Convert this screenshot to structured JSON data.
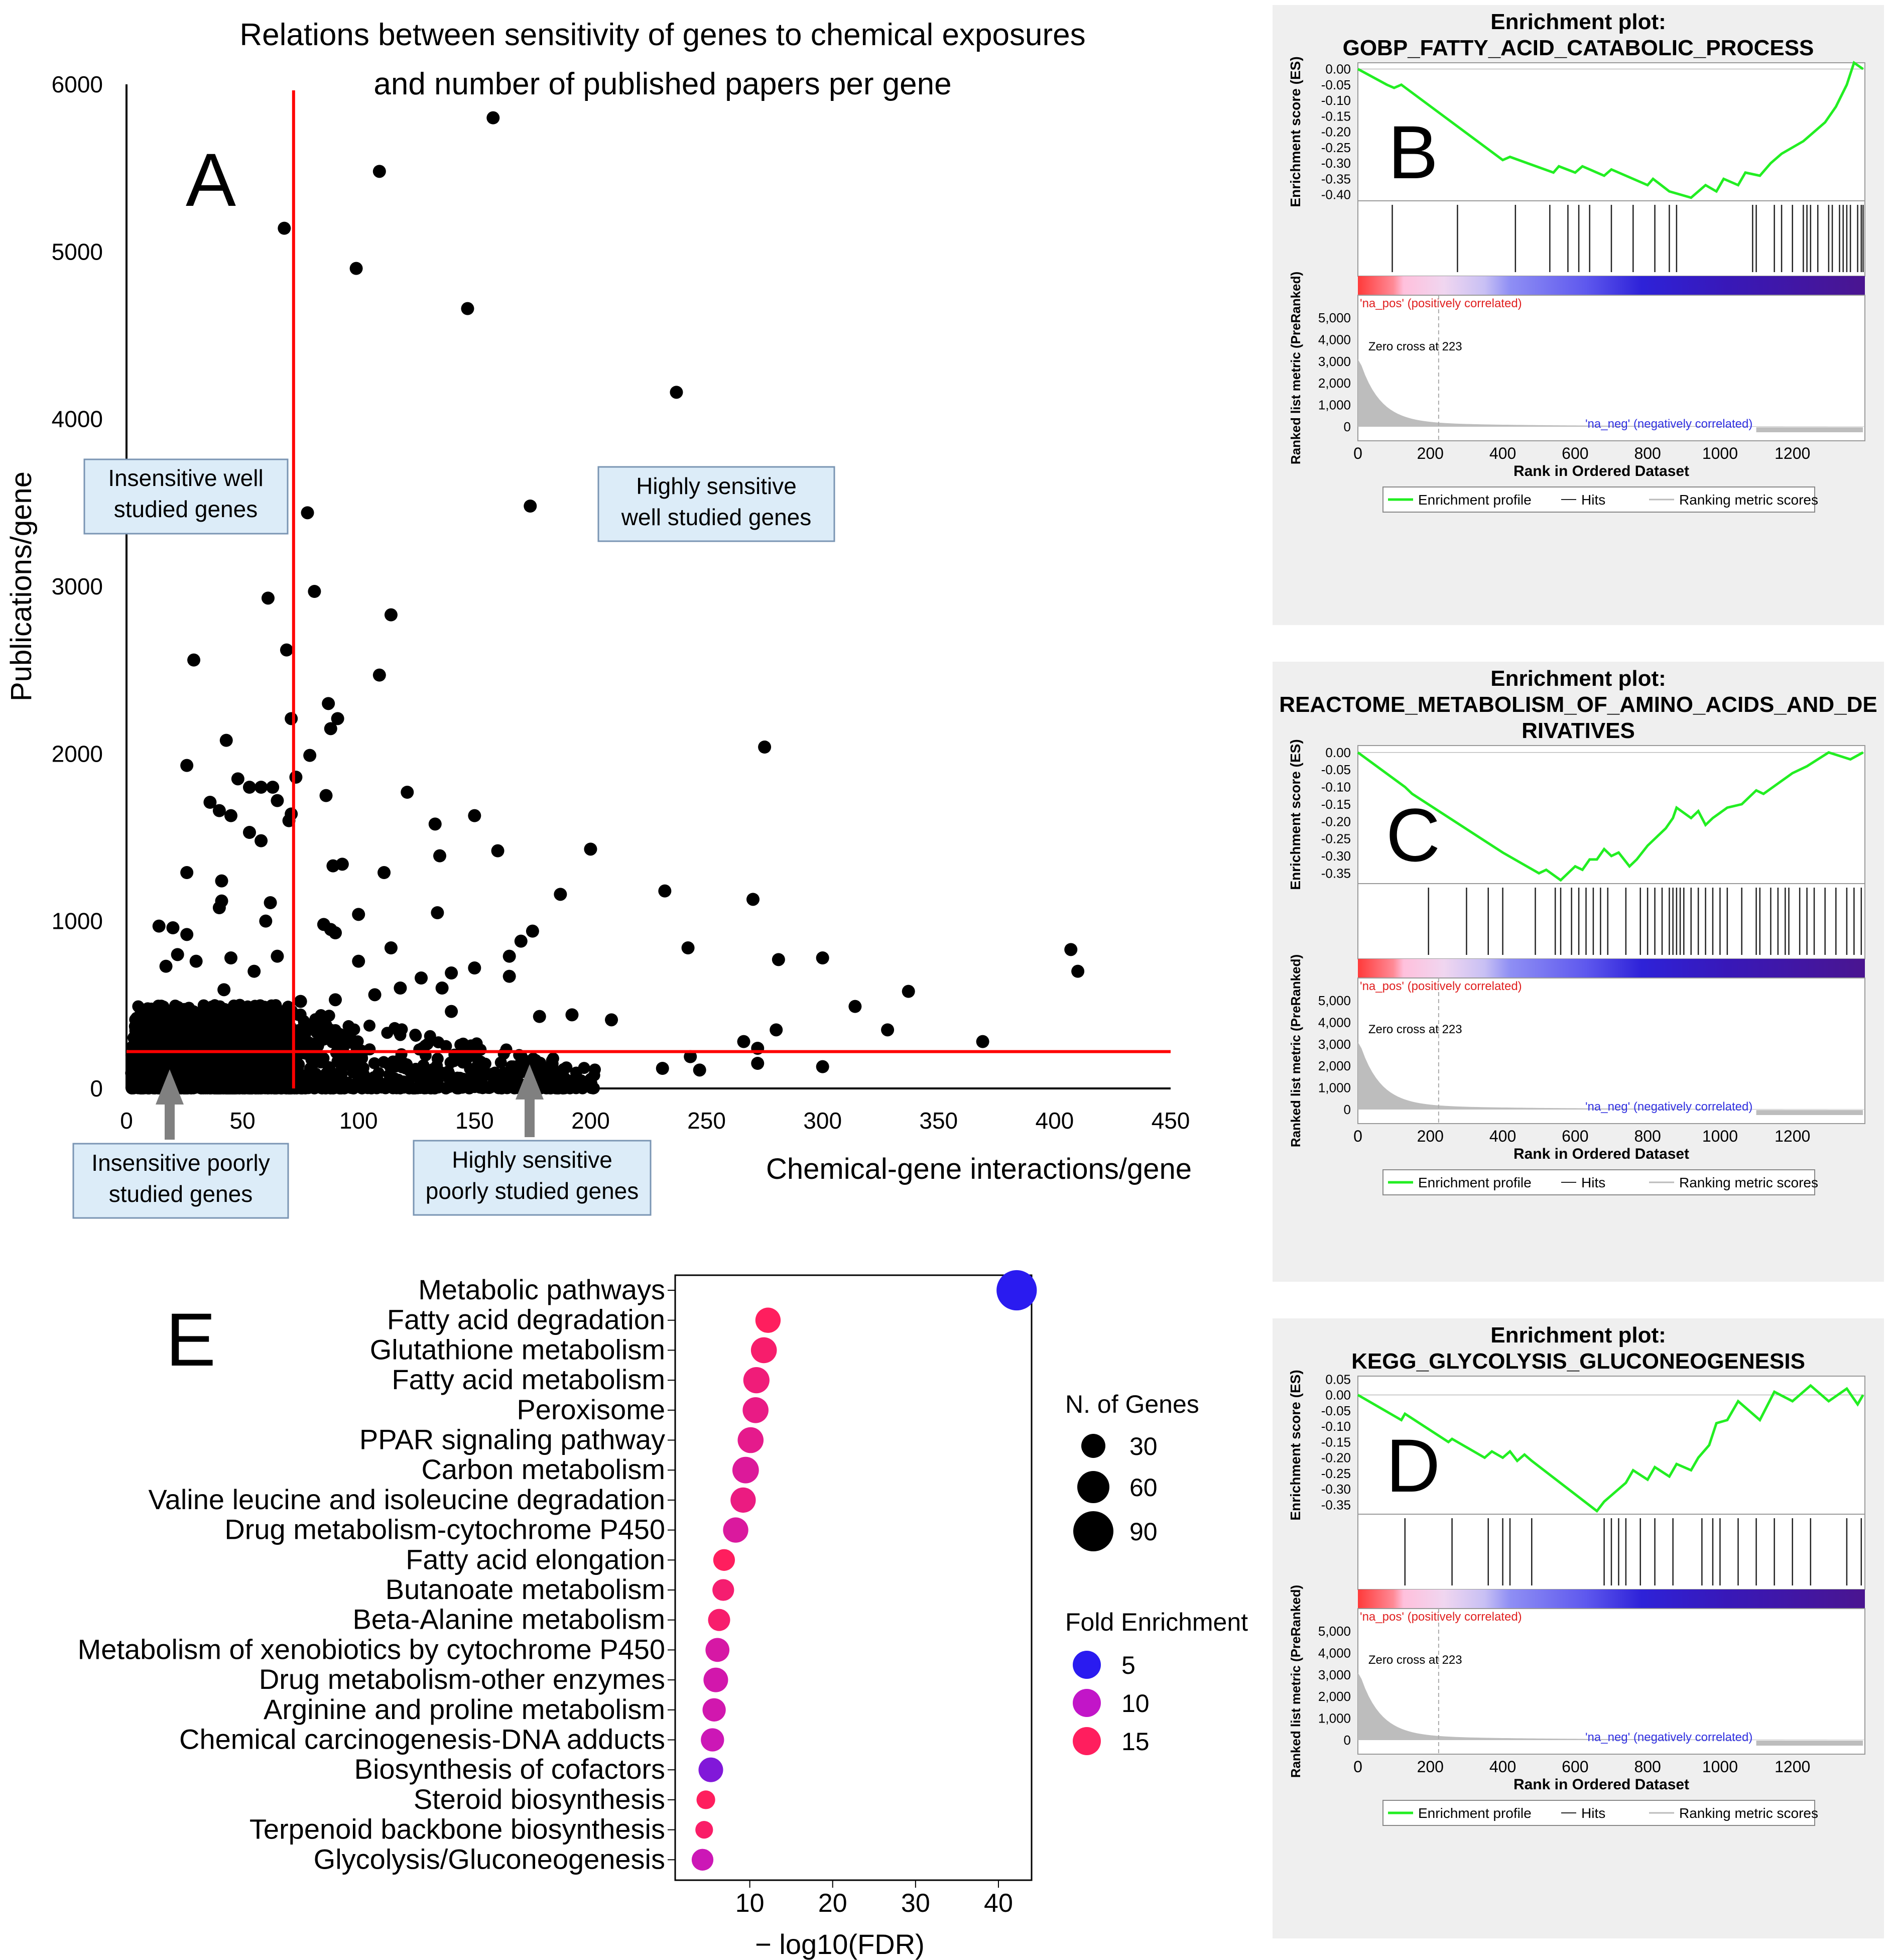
{
  "panel_letters": {
    "A": "A",
    "B": "B",
    "C": "C",
    "D": "D",
    "E": "E"
  },
  "panelA_annotations": {
    "insensitive_well": [
      "Insensitive well",
      "studied genes"
    ],
    "sensitive_well": [
      "Highly sensitive",
      "well studied genes"
    ],
    "insensitive_poor": [
      "Insensitive poorly",
      "studied genes"
    ],
    "sensitive_poor": [
      "Highly sensitive",
      "poorly studied genes"
    ]
  },
  "chart_data": [
    {
      "id": "A",
      "type": "scatter",
      "title": [
        "Relations between sensitivity of genes to chemical exposures",
        "and number of published papers per gene"
      ],
      "xlabel": "Chemical-gene interactions/gene",
      "ylabel": "Publications/gene",
      "xlim": [
        0,
        450
      ],
      "ylim": [
        0,
        6000
      ],
      "xticks": [
        0,
        50,
        100,
        150,
        200,
        250,
        300,
        350,
        400,
        450
      ],
      "yticks": [
        0,
        1000,
        2000,
        3000,
        4000,
        5000,
        6000
      ],
      "threshold_lines": {
        "x": 72,
        "y": 220
      },
      "points": [
        [
          158,
          5800
        ],
        [
          109,
          5480
        ],
        [
          68,
          5140
        ],
        [
          99,
          4900
        ],
        [
          147,
          4660
        ],
        [
          237,
          4160
        ],
        [
          78,
          3440
        ],
        [
          174,
          3480
        ],
        [
          81,
          2970
        ],
        [
          61,
          2930
        ],
        [
          69,
          2620
        ],
        [
          114,
          2830
        ],
        [
          29,
          2560
        ],
        [
          109,
          2470
        ],
        [
          87,
          2300
        ],
        [
          91,
          2210
        ],
        [
          88,
          2150
        ],
        [
          71,
          2210
        ],
        [
          275,
          2040
        ],
        [
          79,
          1990
        ],
        [
          43,
          2080
        ],
        [
          26,
          1930
        ],
        [
          73,
          1860
        ],
        [
          48,
          1850
        ],
        [
          58,
          1800
        ],
        [
          53,
          1800
        ],
        [
          63,
          1800
        ],
        [
          65,
          1720
        ],
        [
          36,
          1710
        ],
        [
          121,
          1770
        ],
        [
          86,
          1750
        ],
        [
          40,
          1660
        ],
        [
          45,
          1630
        ],
        [
          150,
          1630
        ],
        [
          71,
          1640
        ],
        [
          70,
          1600
        ],
        [
          133,
          1580
        ],
        [
          53,
          1530
        ],
        [
          58,
          1480
        ],
        [
          160,
          1420
        ],
        [
          200,
          1430
        ],
        [
          232,
          1180
        ],
        [
          187,
          1160
        ],
        [
          26,
          1290
        ],
        [
          41,
          1240
        ],
        [
          93,
          1340
        ],
        [
          89,
          1330
        ],
        [
          135,
          1390
        ],
        [
          111,
          1290
        ],
        [
          270,
          1130
        ],
        [
          41,
          1120
        ],
        [
          40,
          1080
        ],
        [
          62,
          1110
        ],
        [
          134,
          1050
        ],
        [
          60,
          1000
        ],
        [
          100,
          1040
        ],
        [
          85,
          980
        ],
        [
          90,
          930
        ],
        [
          88,
          950
        ],
        [
          175,
          940
        ],
        [
          242,
          840
        ],
        [
          407,
          830
        ],
        [
          410,
          700
        ],
        [
          281,
          770
        ],
        [
          300,
          780
        ],
        [
          20,
          960
        ],
        [
          14,
          970
        ],
        [
          26,
          920
        ],
        [
          170,
          880
        ],
        [
          22,
          800
        ],
        [
          17,
          730
        ],
        [
          30,
          760
        ],
        [
          45,
          780
        ],
        [
          65,
          790
        ],
        [
          114,
          840
        ],
        [
          100,
          760
        ],
        [
          127,
          660
        ],
        [
          140,
          690
        ],
        [
          165,
          790
        ],
        [
          150,
          720
        ],
        [
          165,
          670
        ],
        [
          136,
          600
        ],
        [
          118,
          600
        ],
        [
          107,
          560
        ],
        [
          90,
          530
        ],
        [
          75,
          520
        ],
        [
          55,
          700
        ],
        [
          42,
          590
        ],
        [
          337,
          580
        ],
        [
          314,
          490
        ],
        [
          140,
          460
        ],
        [
          178,
          430
        ],
        [
          192,
          440
        ],
        [
          209,
          410
        ],
        [
          280,
          350
        ],
        [
          328,
          350
        ],
        [
          369,
          280
        ],
        [
          300,
          130
        ],
        [
          243,
          190
        ],
        [
          231,
          120
        ],
        [
          247,
          110
        ],
        [
          266,
          280
        ],
        [
          272,
          240
        ],
        [
          272,
          150
        ]
      ],
      "dense_cluster": {
        "x_range": [
          2,
          72
        ],
        "y_range": [
          0,
          500
        ],
        "count": 1600
      }
    },
    {
      "id": "B",
      "type": "line",
      "title": [
        "Enrichment plot:",
        "GOBP_FATTY_ACID_CATABOLIC_PROCESS"
      ],
      "ylabel_top": "Enrichment score (ES)",
      "ylabel_bottom": "Ranked list metric (PreRanked)",
      "xlabel": "Rank in Ordered Dataset",
      "xlim": [
        0,
        1400
      ],
      "es_ylim": [
        -0.42,
        0.02
      ],
      "es_yticks": [
        "0.00",
        "-0.05",
        "-0.10",
        "-0.15",
        "-0.20",
        "-0.25",
        "-0.30",
        "-0.35",
        "-0.40"
      ],
      "es_tick_values": [
        0,
        -0.05,
        -0.1,
        -0.15,
        -0.2,
        -0.25,
        -0.3,
        -0.35,
        -0.4
      ],
      "metric_yticks": [
        "5,000",
        "4,000",
        "3,000",
        "2,000",
        "1,000",
        "0"
      ],
      "xticks": [
        "0",
        "200",
        "400",
        "600",
        "800",
        "1000",
        "1200"
      ],
      "es_curve": [
        [
          0,
          0
        ],
        [
          80,
          -0.05
        ],
        [
          100,
          -0.06
        ],
        [
          120,
          -0.05
        ],
        [
          400,
          -0.29
        ],
        [
          420,
          -0.28
        ],
        [
          540,
          -0.33
        ],
        [
          555,
          -0.31
        ],
        [
          600,
          -0.33
        ],
        [
          620,
          -0.31
        ],
        [
          680,
          -0.34
        ],
        [
          700,
          -0.32
        ],
        [
          800,
          -0.37
        ],
        [
          815,
          -0.35
        ],
        [
          860,
          -0.39
        ],
        [
          920,
          -0.41
        ],
        [
          960,
          -0.37
        ],
        [
          990,
          -0.39
        ],
        [
          1010,
          -0.35
        ],
        [
          1050,
          -0.37
        ],
        [
          1070,
          -0.33
        ],
        [
          1110,
          -0.34
        ],
        [
          1140,
          -0.3
        ],
        [
          1170,
          -0.27
        ],
        [
          1200,
          -0.25
        ],
        [
          1230,
          -0.23
        ],
        [
          1250,
          -0.21
        ],
        [
          1290,
          -0.17
        ],
        [
          1320,
          -0.12
        ],
        [
          1350,
          -0.05
        ],
        [
          1370,
          0.02
        ],
        [
          1395,
          0.0
        ]
      ],
      "hits": [
        95,
        275,
        435,
        530,
        580,
        610,
        640,
        700,
        760,
        820,
        860,
        880,
        1090,
        1100,
        1150,
        1170,
        1200,
        1230,
        1240,
        1250,
        1270,
        1300,
        1310,
        1330,
        1340,
        1350,
        1360,
        1380,
        1390,
        1395
      ],
      "zero_cross_label": "Zero cross at 223",
      "zero_cross": 223,
      "pos_label": "'na_pos' (positively correlated)",
      "neg_label": "'na_neg' (negatively correlated)",
      "legend": [
        "Enrichment profile",
        "Hits",
        "Ranking metric scores"
      ]
    },
    {
      "id": "C",
      "type": "line",
      "title": [
        "Enrichment plot:",
        "REACTOME_METABOLISM_OF_AMINO_ACIDS_AND_DE",
        "RIVATIVES"
      ],
      "ylabel_top": "Enrichment score (ES)",
      "ylabel_bottom": "Ranked list metric (PreRanked)",
      "xlabel": "Rank in Ordered Dataset",
      "xlim": [
        0,
        1400
      ],
      "es_ylim": [
        -0.38,
        0.02
      ],
      "es_yticks": [
        "0.00",
        "-0.05",
        "-0.10",
        "-0.15",
        "-0.20",
        "-0.25",
        "-0.30",
        "-0.35"
      ],
      "es_tick_values": [
        0,
        -0.05,
        -0.1,
        -0.15,
        -0.2,
        -0.25,
        -0.3,
        -0.35
      ],
      "metric_yticks": [
        "5,000",
        "4,000",
        "3,000",
        "2,000",
        "1,000",
        "0"
      ],
      "xticks": [
        "0",
        "200",
        "400",
        "600",
        "800",
        "1000",
        "1200"
      ],
      "es_curve": [
        [
          0,
          0
        ],
        [
          130,
          -0.1
        ],
        [
          150,
          -0.12
        ],
        [
          400,
          -0.29
        ],
        [
          500,
          -0.35
        ],
        [
          520,
          -0.34
        ],
        [
          560,
          -0.37
        ],
        [
          580,
          -0.35
        ],
        [
          600,
          -0.33
        ],
        [
          620,
          -0.34
        ],
        [
          640,
          -0.31
        ],
        [
          660,
          -0.31
        ],
        [
          680,
          -0.28
        ],
        [
          700,
          -0.3
        ],
        [
          720,
          -0.29
        ],
        [
          750,
          -0.33
        ],
        [
          770,
          -0.31
        ],
        [
          800,
          -0.27
        ],
        [
          820,
          -0.25
        ],
        [
          850,
          -0.22
        ],
        [
          870,
          -0.19
        ],
        [
          880,
          -0.16
        ],
        [
          920,
          -0.19
        ],
        [
          940,
          -0.17
        ],
        [
          960,
          -0.21
        ],
        [
          980,
          -0.19
        ],
        [
          1020,
          -0.16
        ],
        [
          1060,
          -0.15
        ],
        [
          1100,
          -0.11
        ],
        [
          1120,
          -0.12
        ],
        [
          1160,
          -0.09
        ],
        [
          1200,
          -0.06
        ],
        [
          1240,
          -0.04
        ],
        [
          1270,
          -0.02
        ],
        [
          1300,
          0.0
        ],
        [
          1330,
          -0.01
        ],
        [
          1360,
          -0.02
        ],
        [
          1395,
          0.0
        ]
      ],
      "hits": [
        195,
        300,
        360,
        400,
        490,
        545,
        560,
        590,
        610,
        630,
        650,
        670,
        690,
        740,
        780,
        800,
        820,
        840,
        860,
        870,
        880,
        890,
        900,
        920,
        940,
        960,
        980,
        1000,
        1020,
        1060,
        1100,
        1110,
        1140,
        1160,
        1180,
        1190,
        1220,
        1240,
        1260,
        1290,
        1320,
        1350,
        1370,
        1390
      ],
      "zero_cross_label": "Zero cross at 223",
      "zero_cross": 223,
      "pos_label": "'na_pos' (positively correlated)",
      "neg_label": "'na_neg' (negatively correlated)",
      "legend": [
        "Enrichment profile",
        "Hits",
        "Ranking metric scores"
      ]
    },
    {
      "id": "D",
      "type": "line",
      "title": [
        "Enrichment plot:",
        "KEGG_GLYCOLYSIS_GLUCONEOGENESIS"
      ],
      "ylabel_top": "Enrichment score (ES)",
      "ylabel_bottom": "Ranked list metric (PreRanked)",
      "xlabel": "Rank in Ordered Dataset",
      "xlim": [
        0,
        1400
      ],
      "es_ylim": [
        -0.38,
        0.06
      ],
      "es_yticks": [
        "0.05",
        "0.00",
        "-0.05",
        "-0.10",
        "-0.15",
        "-0.20",
        "-0.25",
        "-0.30",
        "-0.35"
      ],
      "es_tick_values": [
        0.05,
        0,
        -0.05,
        -0.1,
        -0.15,
        -0.2,
        -0.25,
        -0.3,
        -0.35
      ],
      "metric_yticks": [
        "5,000",
        "4,000",
        "3,000",
        "2,000",
        "1,000",
        "0"
      ],
      "xticks": [
        "0",
        "200",
        "400",
        "600",
        "800",
        "1000",
        "1200"
      ],
      "es_curve": [
        [
          0,
          0
        ],
        [
          120,
          -0.08
        ],
        [
          130,
          -0.06
        ],
        [
          250,
          -0.15
        ],
        [
          260,
          -0.14
        ],
        [
          350,
          -0.2
        ],
        [
          370,
          -0.18
        ],
        [
          400,
          -0.2
        ],
        [
          420,
          -0.18
        ],
        [
          440,
          -0.21
        ],
        [
          460,
          -0.19
        ],
        [
          480,
          -0.21
        ],
        [
          660,
          -0.37
        ],
        [
          680,
          -0.34
        ],
        [
          700,
          -0.32
        ],
        [
          720,
          -0.3
        ],
        [
          740,
          -0.28
        ],
        [
          760,
          -0.24
        ],
        [
          800,
          -0.27
        ],
        [
          820,
          -0.23
        ],
        [
          860,
          -0.26
        ],
        [
          880,
          -0.22
        ],
        [
          920,
          -0.24
        ],
        [
          940,
          -0.2
        ],
        [
          970,
          -0.16
        ],
        [
          990,
          -0.09
        ],
        [
          1020,
          -0.08
        ],
        [
          1050,
          -0.02
        ],
        [
          1110,
          -0.08
        ],
        [
          1150,
          0.01
        ],
        [
          1200,
          -0.02
        ],
        [
          1250,
          0.03
        ],
        [
          1300,
          -0.02
        ],
        [
          1350,
          0.02
        ],
        [
          1380,
          -0.03
        ],
        [
          1395,
          0.0
        ]
      ],
      "hits": [
        130,
        260,
        360,
        400,
        420,
        480,
        680,
        700,
        720,
        740,
        780,
        820,
        870,
        950,
        980,
        1000,
        1050,
        1100,
        1150,
        1200,
        1250,
        1350,
        1390
      ],
      "zero_cross_label": "Zero cross at 223",
      "zero_cross": 223,
      "pos_label": "'na_pos' (positively correlated)",
      "neg_label": "'na_neg' (negatively correlated)",
      "legend": [
        "Enrichment profile",
        "Hits",
        "Ranking metric scores"
      ]
    },
    {
      "id": "E",
      "type": "scatter",
      "xlabel": "− log10(FDR)",
      "xlim": [
        1,
        44
      ],
      "xticks": [
        10,
        20,
        30,
        40
      ],
      "categories": [
        "Metabolic pathways",
        "Fatty acid degradation",
        "Glutathione metabolism",
        "Fatty acid metabolism",
        "Peroxisome",
        "PPAR signaling pathway",
        "Carbon metabolism",
        "Valine leucine and isoleucine degradation",
        "Drug metabolism-cytochrome P450",
        "Fatty acid elongation",
        "Butanoate metabolism",
        "Beta-Alanine metabolism",
        "Metabolism of xenobiotics by cytochrome P450",
        "Drug metabolism-other enzymes",
        "Arginine and proline metabolism",
        "Chemical carcinogenesis-DNA adducts",
        "Biosynthesis of cofactors",
        "Steroid biosynthesis",
        "Terpenoid backbone biosynthesis",
        "Glycolysis/Gluconeogenesis"
      ],
      "neg_log10_fdr": [
        42.2,
        12.2,
        11.7,
        10.8,
        10.7,
        10.1,
        9.5,
        9.2,
        8.3,
        6.9,
        6.8,
        6.3,
        6.1,
        5.9,
        5.7,
        5.5,
        5.3,
        4.7,
        4.5,
        4.3
      ],
      "n_genes": [
        95,
        30,
        32,
        33,
        32,
        32,
        34,
        30,
        30,
        20,
        20,
        21,
        26,
        28,
        24,
        24,
        28,
        13,
        11,
        20
      ],
      "fold_enrichment": [
        2.8,
        16.5,
        15.2,
        14.5,
        13.8,
        13.4,
        12.6,
        14.0,
        12.4,
        16.0,
        15.0,
        15.2,
        12.0,
        11.6,
        11.5,
        11.0,
        7.0,
        16.5,
        15.5,
        11.0
      ],
      "legend_size_title": "N. of Genes",
      "legend_size_values": [
        30,
        60,
        90
      ],
      "legend_color_title": "Fold Enrichment",
      "legend_color_values": [
        5,
        10,
        15
      ],
      "legend_colors": [
        "#2a1bf0",
        "#c215c8",
        "#ff1e5e"
      ]
    }
  ]
}
